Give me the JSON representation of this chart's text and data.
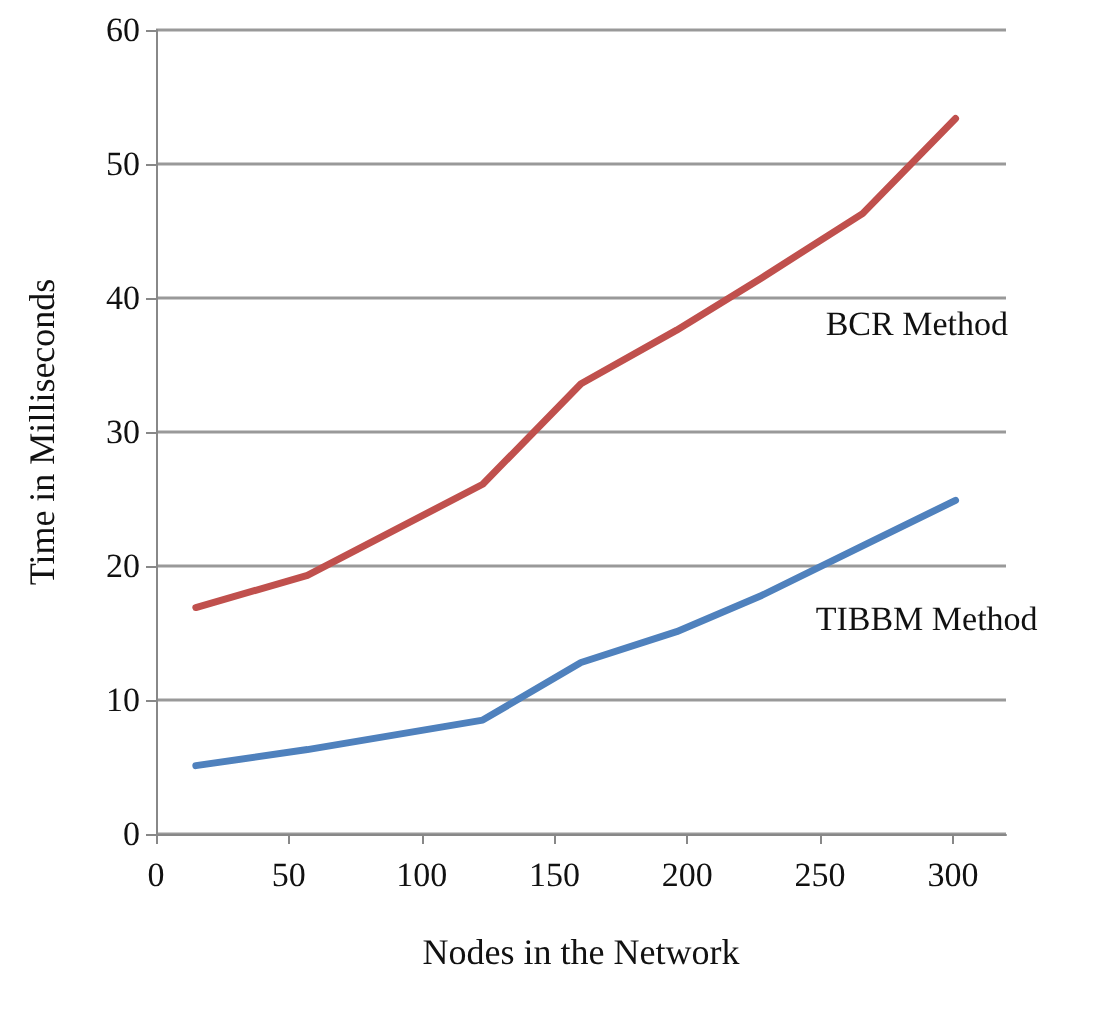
{
  "chart_data": {
    "type": "line",
    "xlabel": "Nodes in the Network",
    "ylabel": "Time in Milliseconds",
    "x": [
      15,
      57,
      123,
      160,
      196,
      228,
      266,
      301
    ],
    "series": [
      {
        "name": "BCR Method",
        "color": "#c0504d",
        "values": [
          16.9,
          19.3,
          26.1,
          33.6,
          37.6,
          41.5,
          46.3,
          53.4
        ]
      },
      {
        "name": "TIBBM Method",
        "color": "#4f81bd",
        "values": [
          5.1,
          6.3,
          8.5,
          12.8,
          15.1,
          17.8,
          21.5,
          24.9
        ]
      }
    ],
    "xlim": [
      0,
      320
    ],
    "xticks": [
      0,
      50,
      100,
      150,
      200,
      250,
      300
    ],
    "ylim": [
      0,
      60
    ],
    "yticks": [
      0,
      10,
      20,
      30,
      40,
      50,
      60
    ],
    "grid": "y",
    "legend": false,
    "marker": "none",
    "line_style": "solid"
  }
}
